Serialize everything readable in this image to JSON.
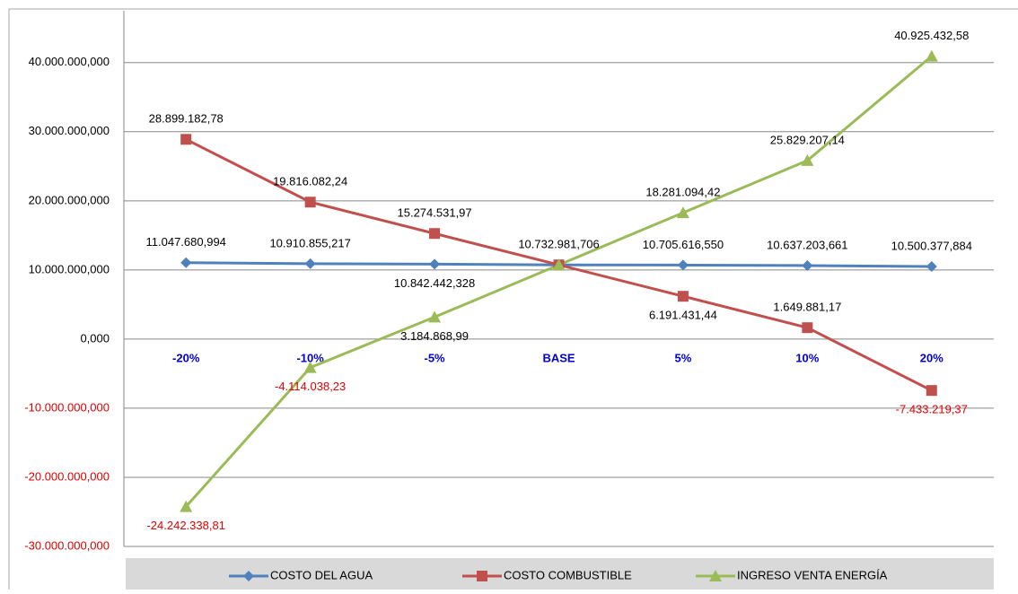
{
  "chart_data": {
    "type": "line",
    "categories": [
      "-20%",
      "-10%",
      "-5%",
      "BASE",
      "5%",
      "10%",
      "20%"
    ],
    "series": [
      {
        "name": "COSTO DEL AGUA",
        "color": "#4f81bd",
        "marker": "diamond",
        "values": [
          11047680.994,
          10910855.217,
          10842442.328,
          10732981.706,
          10705616.55,
          10637203.661,
          10500377.884
        ],
        "value_labels": [
          "11.047.680,994",
          "10.910.855,217",
          "10.842.442,328",
          "10.732.981,706",
          "10.705.616,550",
          "10.637.203,661",
          "10.500.377,884"
        ]
      },
      {
        "name": "COSTO COMBUSTIBLE",
        "color": "#c0504d",
        "marker": "square",
        "values": [
          28899182.78,
          19816082.24,
          15274531.97,
          10732981.706,
          6191431.44,
          1649881.17,
          -7433219.37
        ],
        "value_labels": [
          "28.899.182,78",
          "19.816.082,24",
          "15.274.531,97",
          null,
          "6.191.431,44",
          "1.649.881,17",
          "-7.433.219,37"
        ]
      },
      {
        "name": "INGRESO VENTA ENERGÍA",
        "color": "#9bbb59",
        "marker": "triangle",
        "values": [
          -24242338.81,
          -4114038.23,
          3184868.99,
          10732981.706,
          18281094.42,
          25829207.14,
          40925432.58
        ],
        "value_labels": [
          "-24.242.338,81",
          "-4.114.038,23",
          "3.184.868,99",
          null,
          "18.281.094,42",
          "25.829.207,14",
          "40.925.432,58"
        ]
      }
    ],
    "ylim": [
      -30000000,
      47500000
    ],
    "yticks": [
      {
        "value": -30000000,
        "label": "-30.000.000,000"
      },
      {
        "value": -20000000,
        "label": "-20.000.000,000"
      },
      {
        "value": -10000000,
        "label": "-10.000.000,000"
      },
      {
        "value": 0,
        "label": "0,000"
      },
      {
        "value": 10000000,
        "label": "10.000.000,000"
      },
      {
        "value": 20000000,
        "label": "20.000.000,000"
      },
      {
        "value": 30000000,
        "label": "30.000.000,000"
      },
      {
        "value": 40000000,
        "label": "40.000.000,000"
      }
    ],
    "grid": true,
    "legend": "bottom"
  }
}
